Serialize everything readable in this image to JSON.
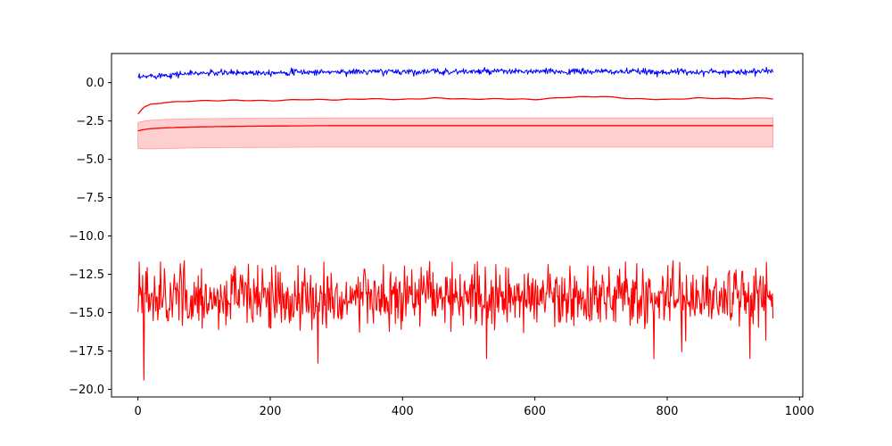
{
  "chart_data": {
    "type": "line",
    "title": "",
    "xlabel": "",
    "ylabel": "",
    "xlim": [
      -40,
      1005
    ],
    "ylim": [
      -20.5,
      1.9
    ],
    "xticks": [
      0,
      200,
      400,
      600,
      800,
      1000
    ],
    "yticks": [
      0.0,
      -2.5,
      -5.0,
      -7.5,
      -10.0,
      -12.5,
      -15.0,
      -17.5,
      -20.0
    ],
    "xtick_labels": [
      "0",
      "200",
      "400",
      "600",
      "800",
      "1000"
    ],
    "ytick_labels": [
      "0.0",
      "−2.5",
      "−5.0",
      "−7.5",
      "−10.0",
      "−12.5",
      "−15.0",
      "−17.5",
      "−20.0"
    ],
    "grid": false,
    "legend": "none",
    "series": [
      {
        "color": "#0000ff",
        "style": "noisy",
        "x": [
          0,
          20,
          40,
          60,
          80,
          100,
          150,
          200,
          300,
          400,
          500,
          600,
          700,
          800,
          900,
          960
        ],
        "values": [
          0.3,
          0.45,
          0.5,
          0.55,
          0.6,
          0.62,
          0.65,
          0.67,
          0.7,
          0.72,
          0.72,
          0.72,
          0.72,
          0.7,
          0.7,
          0.75
        ],
        "noise": 0.1
      },
      {
        "color": "#ff0000",
        "style": "smooth",
        "x": [
          0,
          5,
          10,
          20,
          40,
          60,
          80,
          100,
          150,
          200,
          250,
          300,
          350,
          400,
          450,
          500,
          550,
          600,
          650,
          700,
          750,
          800,
          850,
          900,
          950,
          960
        ],
        "values": [
          -2.05,
          -1.8,
          -1.6,
          -1.4,
          -1.3,
          -1.25,
          -1.2,
          -1.18,
          -1.15,
          -1.18,
          -1.1,
          -1.12,
          -1.05,
          -1.1,
          -1.0,
          -1.08,
          -1.05,
          -1.1,
          -0.95,
          -0.9,
          -1.05,
          -1.1,
          -1.0,
          -1.05,
          -1.0,
          -1.05
        ]
      },
      {
        "color": "#ff0000",
        "style": "band",
        "x": [
          0,
          10,
          20,
          40,
          60,
          80,
          100,
          150,
          200,
          300,
          400,
          500,
          600,
          700,
          800,
          900,
          960
        ],
        "values": [
          -3.15,
          -3.05,
          -3.0,
          -2.95,
          -2.92,
          -2.9,
          -2.88,
          -2.85,
          -2.83,
          -2.8,
          -2.8,
          -2.8,
          -2.8,
          -2.8,
          -2.8,
          -2.8,
          -2.8
        ],
        "lower": [
          -4.3,
          -4.32,
          -4.32,
          -4.3,
          -4.28,
          -4.26,
          -4.25,
          -4.23,
          -4.22,
          -4.2,
          -4.2,
          -4.2,
          -4.2,
          -4.2,
          -4.2,
          -4.2,
          -4.2
        ],
        "upper": [
          -2.6,
          -2.5,
          -2.45,
          -2.4,
          -2.38,
          -2.36,
          -2.35,
          -2.33,
          -2.32,
          -2.3,
          -2.3,
          -2.3,
          -2.3,
          -2.3,
          -2.3,
          -2.3,
          -2.3
        ],
        "band_color": "#ffcccc"
      },
      {
        "color": "#ff0000",
        "style": "noisy",
        "x": [
          0,
          960
        ],
        "values": [
          -14.0,
          -14.0
        ],
        "noise": 1.0,
        "spikes": [
          [
            9,
            -19.4
          ],
          [
            272,
            -18.3
          ],
          [
            527,
            -18.0
          ],
          [
            780,
            -18.0
          ],
          [
            925,
            -18.0
          ]
        ]
      }
    ]
  }
}
